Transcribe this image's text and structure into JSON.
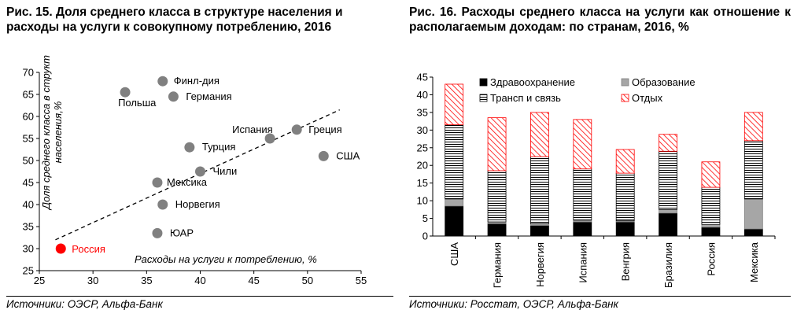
{
  "left": {
    "title": "Рис. 15. Доля среднего класса в структуре населения и расходы на услуги к совокупному потреблению, 2016",
    "source": "Источники: ОЭСР, Альфа-Банк"
  },
  "right": {
    "title": "Рис. 16. Расходы среднего класса на услуги как отношение к располагаемым доходам: по странам, 2016, %",
    "source": "Источники: Росстат, ОЭСР, Альфа-Банк"
  },
  "colors": {
    "point": "#808080",
    "russia": "#ff0000",
    "health": "#000000",
    "education": "#a6a6a6",
    "transport": "#ffffff",
    "leisure": "#ff0000"
  },
  "chart_data": [
    {
      "type": "scatter",
      "xlabel": "Расходы на услуги к потреблению, %",
      "ylabel": "Доля среднего класса в структ населения,%",
      "xlim": [
        25,
        55
      ],
      "ylim": [
        25,
        70
      ],
      "xticks": [
        25,
        30,
        35,
        40,
        45,
        50,
        55
      ],
      "yticks": [
        25,
        30,
        35,
        40,
        45,
        50,
        55,
        60,
        65,
        70
      ],
      "trendline": "dashed",
      "points": [
        {
          "label": "Финл-дия",
          "x": 36.5,
          "y": 68.0
        },
        {
          "label": "Польша",
          "x": 33.0,
          "y": 65.5
        },
        {
          "label": "Германия",
          "x": 37.5,
          "y": 64.5
        },
        {
          "label": "Испания",
          "x": 46.5,
          "y": 55.0
        },
        {
          "label": "Греция",
          "x": 49.0,
          "y": 57.0
        },
        {
          "label": "Турция",
          "x": 39.0,
          "y": 53.0
        },
        {
          "label": "США",
          "x": 51.5,
          "y": 51.0
        },
        {
          "label": "Чили",
          "x": 40.0,
          "y": 47.5
        },
        {
          "label": "Мексика",
          "x": 36.0,
          "y": 45.0
        },
        {
          "label": "Норвегия",
          "x": 36.5,
          "y": 40.0
        },
        {
          "label": "ЮАР",
          "x": 36.0,
          "y": 33.5
        },
        {
          "label": "Россия",
          "x": 27.0,
          "y": 30.0,
          "highlight": true
        }
      ]
    },
    {
      "type": "bar",
      "stacked": true,
      "ylim": [
        0,
        45
      ],
      "yticks": [
        0,
        5,
        10,
        15,
        20,
        25,
        30,
        35,
        40,
        45
      ],
      "categories": [
        "США",
        "Германия",
        "Норвегия",
        "Испания",
        "Венгрия",
        "Бразилия",
        "Россия",
        "Мексика"
      ],
      "series": [
        {
          "name": "Здравоохранение",
          "values": [
            8.5,
            3.5,
            3.0,
            4.0,
            4.0,
            6.5,
            2.5,
            2.0
          ]
        },
        {
          "name": "Образование",
          "values": [
            2.0,
            0.5,
            0.5,
            0.5,
            0.3,
            1.0,
            0.8,
            8.5
          ]
        },
        {
          "name": "Трансп и связь",
          "values": [
            21.0,
            14.5,
            19.0,
            14.5,
            13.5,
            16.5,
            10.5,
            16.5
          ]
        },
        {
          "name": "Отдых",
          "values": [
            11.5,
            15.0,
            12.5,
            14.0,
            6.7,
            4.8,
            7.2,
            8.0
          ]
        }
      ],
      "legend_position": "top"
    }
  ]
}
